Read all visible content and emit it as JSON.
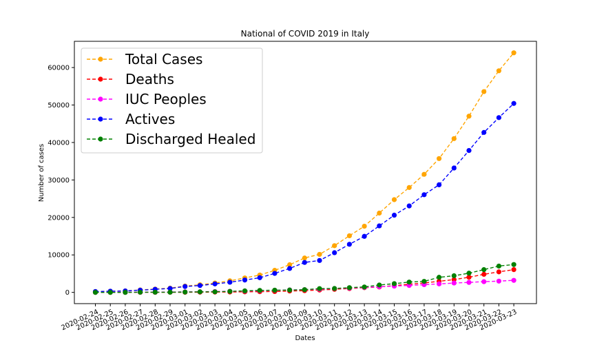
{
  "chart_data": {
    "type": "line",
    "title": "National of COVID 2019 in Italy",
    "xlabel": "Dates",
    "ylabel": "Number of cases",
    "ylim": [
      -3000,
      67000
    ],
    "yticks": [
      0,
      10000,
      20000,
      30000,
      40000,
      50000,
      60000
    ],
    "legend_position": "top-left",
    "grid": false,
    "line_style": "dashed",
    "marker": "circle",
    "categories": [
      "2020-02-24",
      "2020-02-25",
      "2020-02-26",
      "2020-02-27",
      "2020-02-28",
      "2020-02-29",
      "2020-03-01",
      "2020-03-02",
      "2020-03-03",
      "2020-03-04",
      "2020-03-05",
      "2020-03-06",
      "2020-03-07",
      "2020-03-08",
      "2020-03-09",
      "2020-03-10",
      "2020-03-11",
      "2020-03-12",
      "2020-03-13",
      "2020-03-14",
      "2020-03-15",
      "2020-03-16",
      "2020-03-17",
      "2020-03-18",
      "2020-03-19",
      "2020-03-20",
      "2020-03-21",
      "2020-03-22",
      "2020-03-23"
    ],
    "series": [
      {
        "name": "Total Cases",
        "color": "#ffa500",
        "values": [
          229,
          322,
          400,
          650,
          888,
          1128,
          1694,
          2036,
          2502,
          3089,
          3858,
          4636,
          5883,
          7375,
          9172,
          10149,
          12462,
          15113,
          17660,
          21157,
          24747,
          27980,
          31506,
          35713,
          41035,
          47021,
          53578,
          59138,
          63927
        ]
      },
      {
        "name": "Deaths",
        "color": "#ff0000",
        "values": [
          7,
          10,
          12,
          17,
          21,
          29,
          34,
          52,
          79,
          107,
          148,
          197,
          233,
          366,
          463,
          631,
          827,
          1016,
          1266,
          1441,
          1809,
          2158,
          2503,
          2978,
          3405,
          4032,
          4825,
          5476,
          6077
        ]
      },
      {
        "name": "IUC Peoples",
        "color": "#ff00ff",
        "values": [
          26,
          35,
          36,
          56,
          64,
          105,
          140,
          166,
          229,
          295,
          351,
          462,
          567,
          650,
          733,
          877,
          1028,
          1153,
          1328,
          1518,
          1672,
          1851,
          2060,
          2257,
          2498,
          2655,
          2857,
          3009,
          3204
        ]
      },
      {
        "name": "Actives",
        "color": "#0000ff",
        "values": [
          221,
          311,
          385,
          588,
          821,
          1049,
          1577,
          1835,
          2263,
          2706,
          3296,
          3916,
          5061,
          6387,
          7985,
          8514,
          10590,
          12839,
          14955,
          17750,
          20603,
          23073,
          26062,
          28710,
          33190,
          37860,
          42681,
          46638,
          50418
        ]
      },
      {
        "name": "Discharged Healed",
        "color": "#008000",
        "values": [
          1,
          1,
          3,
          45,
          46,
          50,
          83,
          149,
          160,
          276,
          414,
          523,
          589,
          622,
          724,
          1004,
          1045,
          1258,
          1439,
          1966,
          2335,
          2749,
          2941,
          4025,
          4440,
          5129,
          6072,
          7024,
          7432
        ]
      }
    ]
  }
}
